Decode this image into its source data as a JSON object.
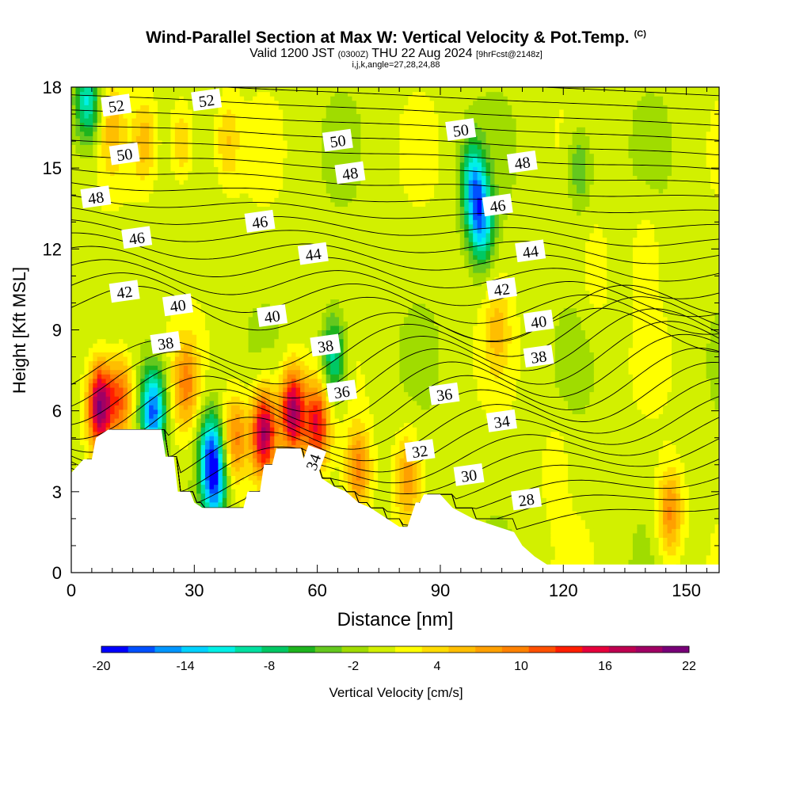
{
  "header": {
    "title": "Wind-Parallel Section at Max W: Vertical Velocity & Pot.Temp.",
    "copyright": "(C)",
    "valid_prefix": "Valid 1200 JST",
    "valid_utc": "(0300Z)",
    "valid_date": "THU 22 Aug 2024",
    "forecast": "[9hrFcst@2148z]",
    "indices": "i,j,k,angle=27,28,24,88"
  },
  "chart_data": {
    "type": "heatmap",
    "xlabel": "Distance [nm]",
    "ylabel": "Height [Kft MSL]",
    "xlim": [
      0,
      158
    ],
    "ylim": [
      0,
      18
    ],
    "x_ticks": [
      0,
      30,
      60,
      90,
      120,
      150
    ],
    "y_ticks": [
      0,
      3,
      6,
      9,
      12,
      15,
      18
    ],
    "colorbar": {
      "label": "Vertical Velocity [cm/s]",
      "tick_labels": [
        "-20",
        "-14",
        "-8",
        "-2",
        "4",
        "10",
        "16",
        "22"
      ],
      "levels": [
        -20,
        -18,
        -16,
        -14,
        -12,
        -10,
        -8,
        -6,
        -4,
        -2,
        0,
        2,
        4,
        6,
        8,
        10,
        12,
        14,
        16,
        18,
        20,
        22
      ],
      "colors": [
        "#0000ff",
        "#0050ff",
        "#0096ff",
        "#00d2ff",
        "#00f0e6",
        "#00e0a0",
        "#00c864",
        "#1eb41e",
        "#64c81e",
        "#a0dc00",
        "#d2f000",
        "#ffff00",
        "#ffdc00",
        "#ffbe00",
        "#ffa000",
        "#ff8200",
        "#ff5000",
        "#ff1e00",
        "#e6003c",
        "#be0050",
        "#a00064",
        "#780078"
      ]
    },
    "terrain_kft": [
      [
        0,
        3.7
      ],
      [
        3,
        4.2
      ],
      [
        5,
        4.2
      ],
      [
        6,
        5.0
      ],
      [
        9,
        5.3
      ],
      [
        22,
        5.3
      ],
      [
        23,
        4.3
      ],
      [
        25,
        4.3
      ],
      [
        26,
        3.0
      ],
      [
        29,
        3.0
      ],
      [
        30,
        2.6
      ],
      [
        32,
        2.4
      ],
      [
        38,
        2.4
      ],
      [
        42,
        2.4
      ],
      [
        43,
        3.0
      ],
      [
        46,
        3.0
      ],
      [
        47,
        4.0
      ],
      [
        49,
        4.0
      ],
      [
        50,
        4.6
      ],
      [
        56,
        4.6
      ],
      [
        57,
        4.0
      ],
      [
        60,
        4.0
      ],
      [
        61,
        3.5
      ],
      [
        64,
        3.2
      ],
      [
        67,
        3.0
      ],
      [
        70,
        2.6
      ],
      [
        73,
        2.4
      ],
      [
        77,
        2.0
      ],
      [
        80,
        1.7
      ],
      [
        82,
        1.7
      ],
      [
        84,
        2.6
      ],
      [
        85,
        2.6
      ],
      [
        86,
        2.9
      ],
      [
        90,
        2.9
      ],
      [
        93,
        2.4
      ],
      [
        98,
        2.0
      ],
      [
        108,
        1.5
      ],
      [
        110,
        1.0
      ],
      [
        113,
        0.6
      ],
      [
        116,
        0.3
      ],
      [
        120,
        0.3
      ],
      [
        158,
        0.3
      ]
    ],
    "pot_temp_contour_labels": [
      "52",
      "52",
      "50",
      "50",
      "50",
      "48",
      "48",
      "48",
      "46",
      "46",
      "46",
      "44",
      "44",
      "42",
      "42",
      "40",
      "40",
      "40",
      "38",
      "38",
      "38",
      "36",
      "36",
      "34",
      "34",
      "32",
      "30",
      "28"
    ],
    "w_centers": [
      {
        "x": 7,
        "y": 6.2,
        "w": 22
      },
      {
        "x": 12,
        "y": 6.5,
        "w": 12
      },
      {
        "x": 20,
        "y": 6.0,
        "w": -18
      },
      {
        "x": 28,
        "y": 7.0,
        "w": 9
      },
      {
        "x": 34,
        "y": 4.5,
        "w": -14
      },
      {
        "x": 35,
        "y": 3.2,
        "w": -13
      },
      {
        "x": 40,
        "y": 5.0,
        "w": 10
      },
      {
        "x": 47,
        "y": 5.2,
        "w": 20
      },
      {
        "x": 54,
        "y": 6.0,
        "w": 20
      },
      {
        "x": 60,
        "y": 5.5,
        "w": 15
      },
      {
        "x": 64,
        "y": 8.0,
        "w": -11
      },
      {
        "x": 70,
        "y": 3.8,
        "w": 10
      },
      {
        "x": 82,
        "y": 3.6,
        "w": 8
      },
      {
        "x": 100,
        "y": 13.0,
        "w": -14
      },
      {
        "x": 98,
        "y": 14.5,
        "w": -12
      },
      {
        "x": 104,
        "y": 9.0,
        "w": 5
      },
      {
        "x": 146,
        "y": 2.2,
        "w": 10
      },
      {
        "x": 4,
        "y": 17.5,
        "w": -12
      },
      {
        "x": 10,
        "y": 16.5,
        "w": 5
      },
      {
        "x": 18,
        "y": 16.0,
        "w": 6
      },
      {
        "x": 27,
        "y": 16.0,
        "w": 6
      },
      {
        "x": 38,
        "y": 16.0,
        "w": 5
      },
      {
        "x": 124,
        "y": 15.0,
        "w": -6
      },
      {
        "x": 128,
        "y": 11.0,
        "w": 3
      },
      {
        "x": 140,
        "y": 12.0,
        "w": 3
      },
      {
        "x": 118,
        "y": 4.0,
        "w": 3
      }
    ]
  }
}
